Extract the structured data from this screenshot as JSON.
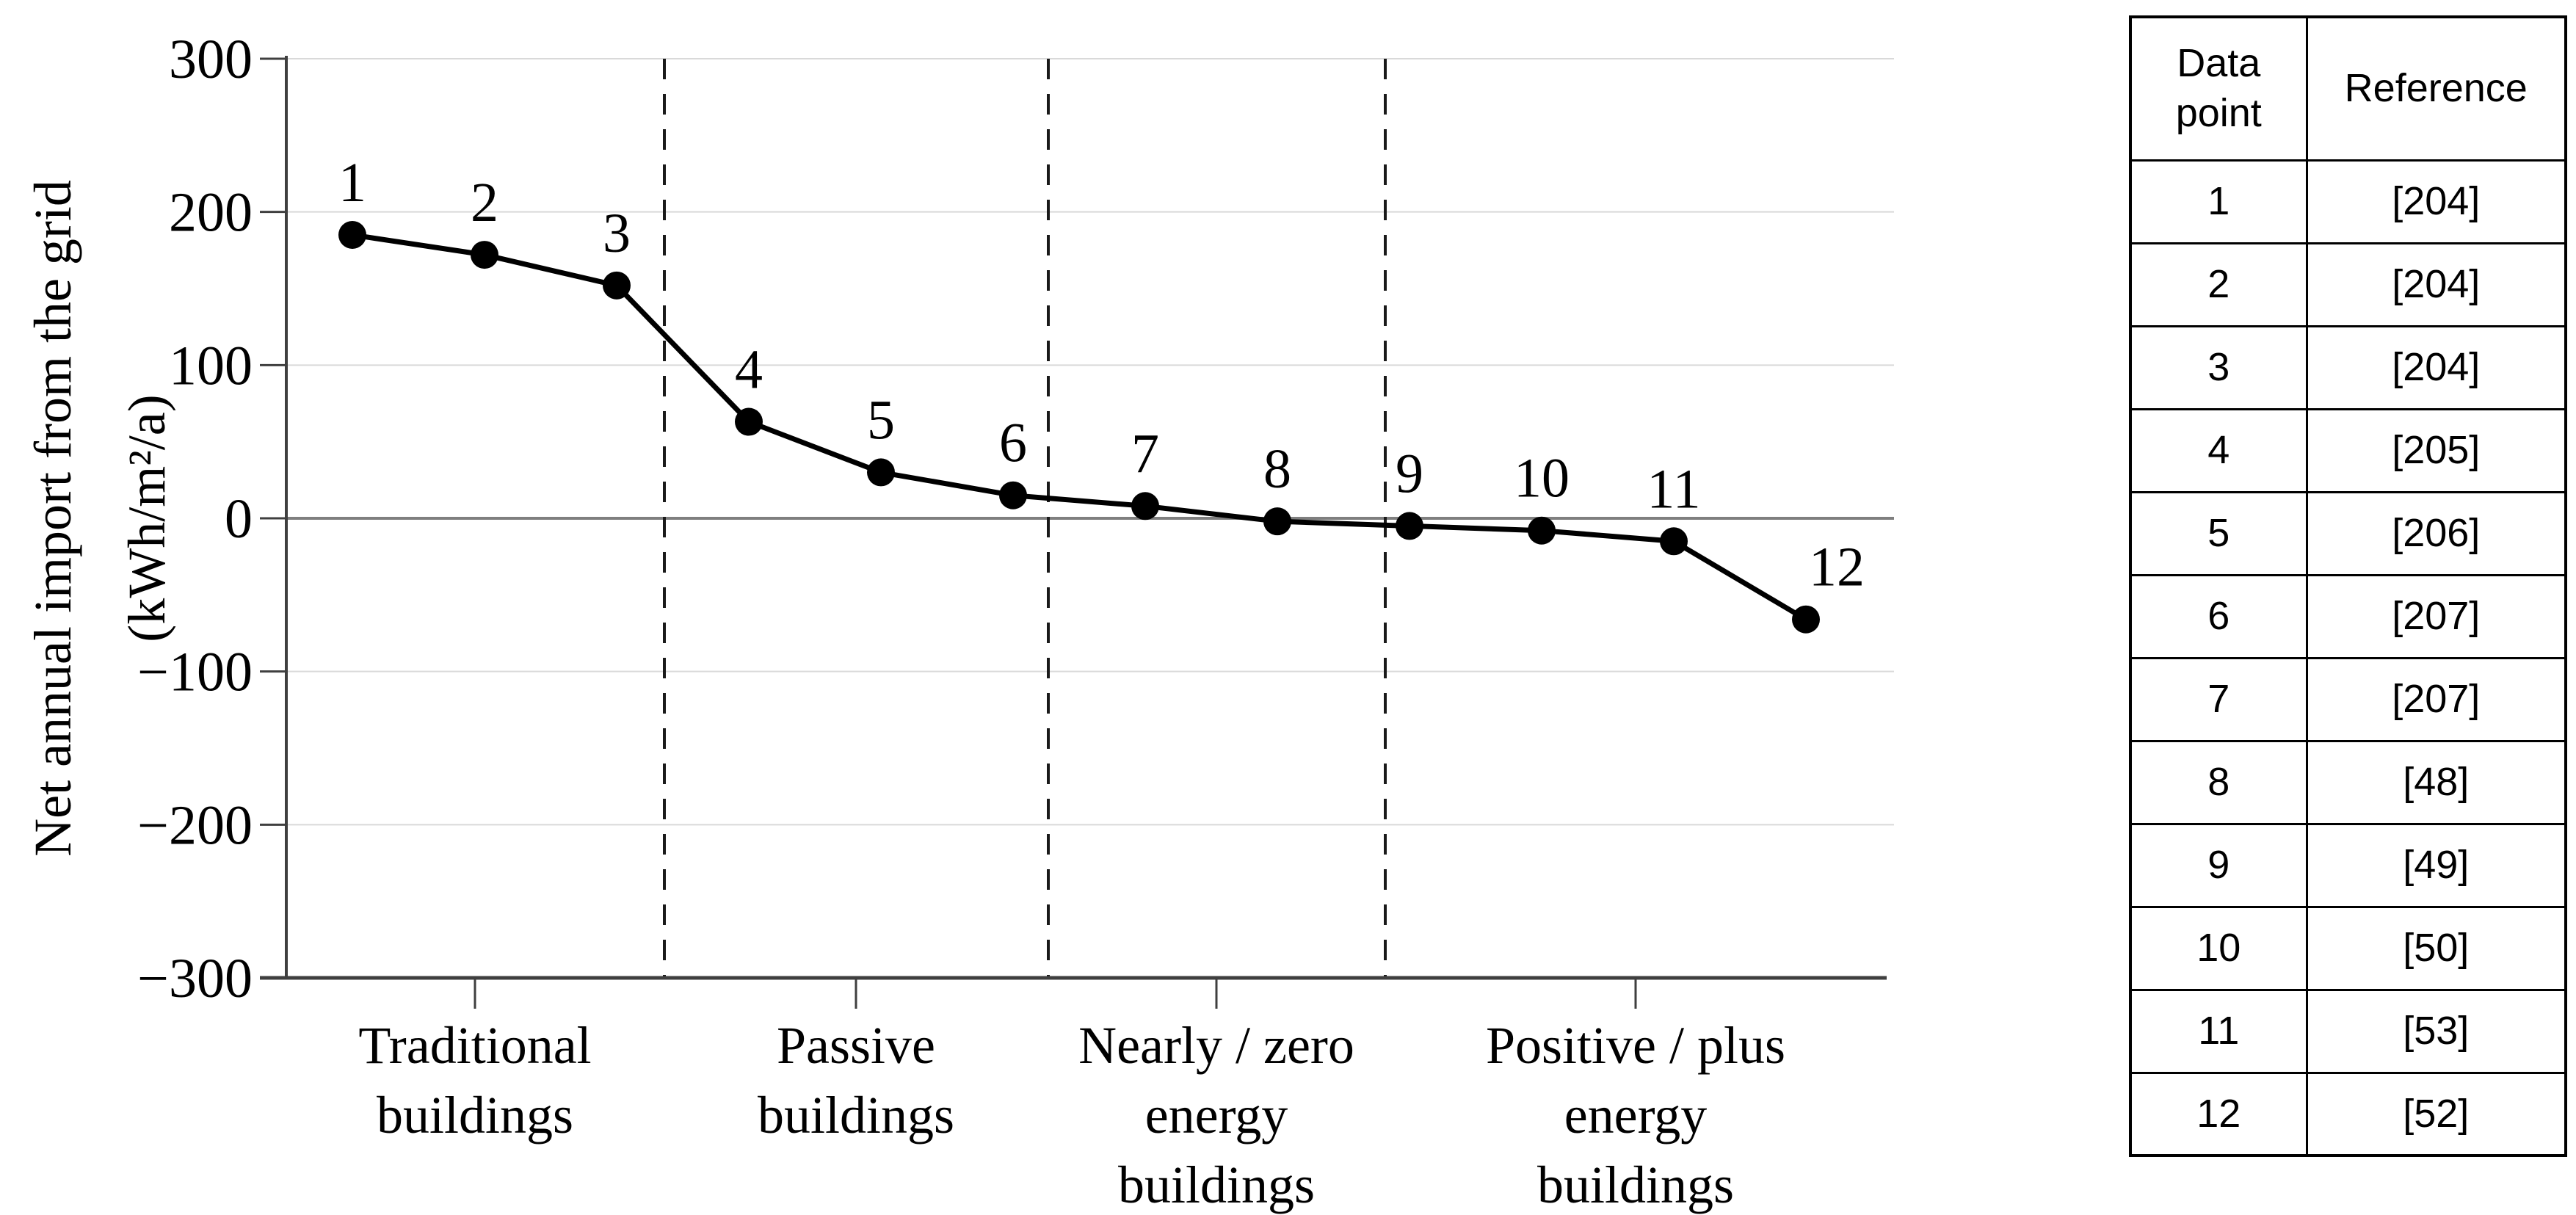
{
  "chart_data": {
    "type": "line",
    "title": "",
    "ylabel_lines": [
      "Net annual import from the grid",
      "(kWh/m²/a)"
    ],
    "ylabel": "Net annual import from the grid (kWh/m²/a)",
    "ylim": [
      -300,
      300
    ],
    "yticks": [
      300,
      200,
      100,
      0,
      -100,
      -200,
      -300
    ],
    "grid": "horizontal-light",
    "legend_position": "none",
    "series": [
      {
        "name": "Net annual import from the grid",
        "points": [
          {
            "label": "1",
            "value": 185
          },
          {
            "label": "2",
            "value": 172
          },
          {
            "label": "3",
            "value": 152
          },
          {
            "label": "4",
            "value": 63
          },
          {
            "label": "5",
            "value": 30
          },
          {
            "label": "6",
            "value": 15
          },
          {
            "label": "7",
            "value": 8
          },
          {
            "label": "8",
            "value": -2
          },
          {
            "label": "9",
            "value": -5
          },
          {
            "label": "10",
            "value": -8
          },
          {
            "label": "11",
            "value": -15
          },
          {
            "label": "12",
            "value": -66
          }
        ]
      }
    ],
    "categories": [
      {
        "label": "Traditional buildings",
        "label_lines": [
          "Traditional",
          "buildings"
        ]
      },
      {
        "label": "Passive buildings",
        "label_lines": [
          "Passive",
          "buildings"
        ]
      },
      {
        "label": "Nearly / zero energy buildings",
        "label_lines": [
          "Nearly / zero",
          "energy",
          "buildings"
        ]
      },
      {
        "label": "Positive / plus energy buildings",
        "label_lines": [
          "Positive / plus",
          "energy",
          "buildings"
        ]
      }
    ],
    "separators": "dashed vertical lines between building categories",
    "colors": {
      "line": "#000000",
      "marker": "#000000",
      "gridline": "#d9d9d9",
      "zero_line": "#7f7f7f",
      "axis": "#3f3f3f",
      "separator": "#1a1a1a",
      "text": "#000000"
    }
  },
  "reference_table": {
    "headers": [
      "Data point",
      "Reference"
    ],
    "rows": [
      {
        "point": "1",
        "reference": "[204]"
      },
      {
        "point": "2",
        "reference": "[204]"
      },
      {
        "point": "3",
        "reference": "[204]"
      },
      {
        "point": "4",
        "reference": "[205]"
      },
      {
        "point": "5",
        "reference": "[206]"
      },
      {
        "point": "6",
        "reference": "[207]"
      },
      {
        "point": "7",
        "reference": "[207]"
      },
      {
        "point": "8",
        "reference": "[48]"
      },
      {
        "point": "9",
        "reference": "[49]"
      },
      {
        "point": "10",
        "reference": "[50]"
      },
      {
        "point": "11",
        "reference": "[53]"
      },
      {
        "point": "12",
        "reference": "[52]"
      }
    ]
  }
}
